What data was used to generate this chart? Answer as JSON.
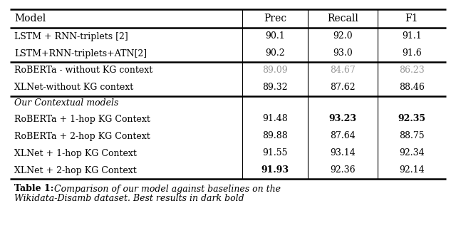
{
  "headers": [
    "Model",
    "Prec",
    "Recall",
    "F1"
  ],
  "rows": [
    {
      "model": "LSTM + RNN-triplets [2]",
      "prec": "90.1",
      "recall": "92.0",
      "f1": "91.1",
      "prec_bold": false,
      "recall_bold": false,
      "f1_bold": false,
      "prec_gray": false,
      "recall_gray": false,
      "f1_gray": false,
      "model_italic": false,
      "section_header": false
    },
    {
      "model": "LSTM+RNN-triplets+ATN[2]",
      "prec": "90.2",
      "recall": "93.0",
      "f1": "91.6",
      "prec_bold": false,
      "recall_bold": false,
      "f1_bold": false,
      "prec_gray": false,
      "recall_gray": false,
      "f1_gray": false,
      "model_italic": false,
      "section_header": false
    },
    {
      "model": "RoBERTa - without KG context",
      "prec": "89.09",
      "recall": "84.67",
      "f1": "86.23",
      "prec_bold": false,
      "recall_bold": false,
      "f1_bold": false,
      "prec_gray": true,
      "recall_gray": true,
      "f1_gray": true,
      "model_italic": false,
      "section_header": false
    },
    {
      "model": "XLNet-without KG context",
      "prec": "89.32",
      "recall": "87.62",
      "f1": "88.46",
      "prec_bold": false,
      "recall_bold": false,
      "f1_bold": false,
      "prec_gray": false,
      "recall_gray": false,
      "f1_gray": false,
      "model_italic": false,
      "section_header": false
    },
    {
      "model": "Our Contextual models",
      "prec": "",
      "recall": "",
      "f1": "",
      "prec_bold": false,
      "recall_bold": false,
      "f1_bold": false,
      "prec_gray": false,
      "recall_gray": false,
      "f1_gray": false,
      "model_italic": true,
      "section_header": true
    },
    {
      "model": "RoBERTa + 1-hop KG Context",
      "prec": "91.48",
      "recall": "93.23",
      "f1": "92.35",
      "prec_bold": false,
      "recall_bold": true,
      "f1_bold": true,
      "prec_gray": false,
      "recall_gray": false,
      "f1_gray": false,
      "model_italic": false,
      "section_header": false
    },
    {
      "model": "RoBERTa + 2-hop KG Context",
      "prec": "89.88",
      "recall": "87.64",
      "f1": "88.75",
      "prec_bold": false,
      "recall_bold": false,
      "f1_bold": false,
      "prec_gray": false,
      "recall_gray": false,
      "f1_gray": false,
      "model_italic": false,
      "section_header": false
    },
    {
      "model": "XLNet + 1-hop KG Context",
      "prec": "91.55",
      "recall": "93.14",
      "f1": "92.34",
      "prec_bold": false,
      "recall_bold": false,
      "f1_bold": false,
      "prec_gray": false,
      "recall_gray": false,
      "f1_gray": false,
      "model_italic": false,
      "section_header": false
    },
    {
      "model": "XLNet + 2-hop KG Context",
      "prec": "91.93",
      "recall": "92.36",
      "f1": "92.14",
      "prec_bold": true,
      "recall_bold": false,
      "f1_bold": false,
      "prec_gray": false,
      "recall_gray": false,
      "f1_gray": false,
      "model_italic": false,
      "section_header": false
    }
  ],
  "caption_prefix": "Table 1:",
  "caption_line1_rest": " Comparison of our model against baselines on the",
  "caption_line2": "Wikidata-Disamb dataset. Best results in dark bold",
  "background_color": "#ffffff",
  "text_color": "#000000",
  "gray_color": "#999999",
  "thick_lw": 1.8,
  "thin_lw": 0.8,
  "fontsize_header": 10,
  "fontsize_body": 9,
  "fontsize_caption": 9
}
